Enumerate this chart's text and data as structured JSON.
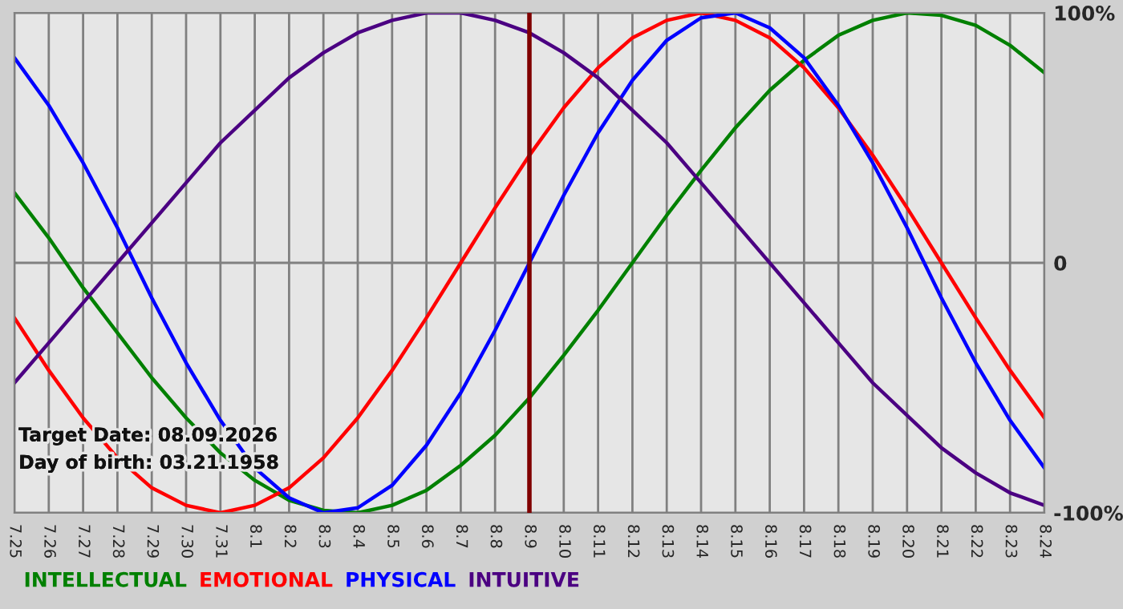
{
  "chart_data": {
    "type": "line",
    "categories": [
      "7.25",
      "7.26",
      "7.27",
      "7.28",
      "7.29",
      "7.30",
      "7.31",
      "8.1",
      "8.2",
      "8.3",
      "8.4",
      "8.5",
      "8.6",
      "8.7",
      "8.8",
      "8.9",
      "8.10",
      "8.11",
      "8.12",
      "8.13",
      "8.14",
      "8.15",
      "8.16",
      "8.17",
      "8.18",
      "8.19",
      "8.20",
      "8.21",
      "8.22",
      "8.23",
      "8.24"
    ],
    "series": [
      {
        "name": "INTELLECTUAL",
        "color": "#008000",
        "values": [
          28,
          10,
          -10,
          -28,
          -46,
          -62,
          -76,
          -87,
          -95,
          -99,
          -100,
          -97,
          -91,
          -81,
          -69,
          -54,
          -37,
          -19,
          0,
          19,
          37,
          54,
          69,
          81,
          91,
          97,
          100,
          99,
          95,
          87,
          76
        ]
      },
      {
        "name": "EMOTIONAL",
        "color": "#ff0000",
        "values": [
          -22,
          -43,
          -62,
          -78,
          -90,
          -97,
          -100,
          -97,
          -90,
          -78,
          -62,
          -43,
          -22,
          0,
          22,
          43,
          62,
          78,
          90,
          97,
          100,
          97,
          90,
          78,
          62,
          43,
          22,
          0,
          -22,
          -43,
          -62
        ]
      },
      {
        "name": "PHYSICAL",
        "color": "#0000ff",
        "values": [
          82,
          63,
          40,
          14,
          -14,
          -40,
          -63,
          -82,
          -94,
          -100,
          -98,
          -89,
          -73,
          -52,
          -27,
          0,
          27,
          52,
          73,
          89,
          98,
          100,
          94,
          82,
          63,
          40,
          14,
          -14,
          -40,
          -63,
          -82
        ]
      },
      {
        "name": "INTUITIVE",
        "color": "#4b0082",
        "values": [
          -48,
          -32,
          -16,
          0,
          16,
          32,
          48,
          61,
          74,
          84,
          92,
          97,
          100,
          100,
          97,
          92,
          84,
          74,
          61,
          48,
          32,
          16,
          0,
          -16,
          -32,
          -48,
          -61,
          -74,
          -84,
          -92,
          -97
        ]
      }
    ],
    "ylim": [
      -100,
      100
    ],
    "yticks": [
      {
        "value": 100,
        "label": "100%"
      },
      0,
      {
        "value": -100,
        "label": "-100%"
      }
    ],
    "ref_lines": [
      {
        "axis": "x",
        "value": "8.9",
        "color": "#800000"
      }
    ],
    "annotations": [
      "Target Date: 08.09.2026",
      "Day of birth: 03.21.1958"
    ],
    "grid": true,
    "legend": "bottom"
  }
}
